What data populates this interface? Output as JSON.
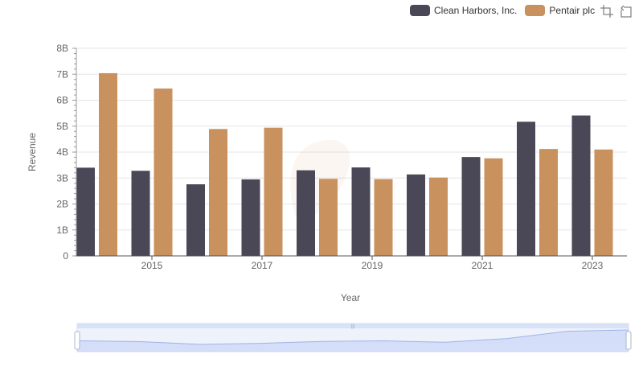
{
  "chart_data": {
    "type": "bar",
    "title": "",
    "xlabel": "Year",
    "ylabel": "Revenue",
    "ylim": [
      0,
      8000000000
    ],
    "y_ticks": [
      "0",
      "1B",
      "2B",
      "3B",
      "4B",
      "5B",
      "6B",
      "7B",
      "8B"
    ],
    "x_tick_labels": [
      "2015",
      "2017",
      "2019",
      "2021",
      "2023"
    ],
    "categories": [
      "2014",
      "2015",
      "2016",
      "2017",
      "2018",
      "2019",
      "2020",
      "2021",
      "2022",
      "2023"
    ],
    "grid": true,
    "legend_position": "top-right",
    "series": [
      {
        "name": "Clean Harbors, Inc.",
        "color": "#4a4857",
        "values": [
          3400000000,
          3280000000,
          2760000000,
          2950000000,
          3300000000,
          3410000000,
          3140000000,
          3810000000,
          5170000000,
          5410000000
        ]
      },
      {
        "name": "Pentair plc",
        "color": "#c8915e",
        "values": [
          7040000000,
          6450000000,
          4890000000,
          4940000000,
          2970000000,
          2960000000,
          3020000000,
          3760000000,
          4120000000,
          4100000000
        ]
      }
    ],
    "zoom_slider": {
      "start_percent": 0,
      "end_percent": 100
    }
  },
  "toolbox": {
    "icons": [
      "zoom-icon",
      "restore-icon"
    ]
  }
}
